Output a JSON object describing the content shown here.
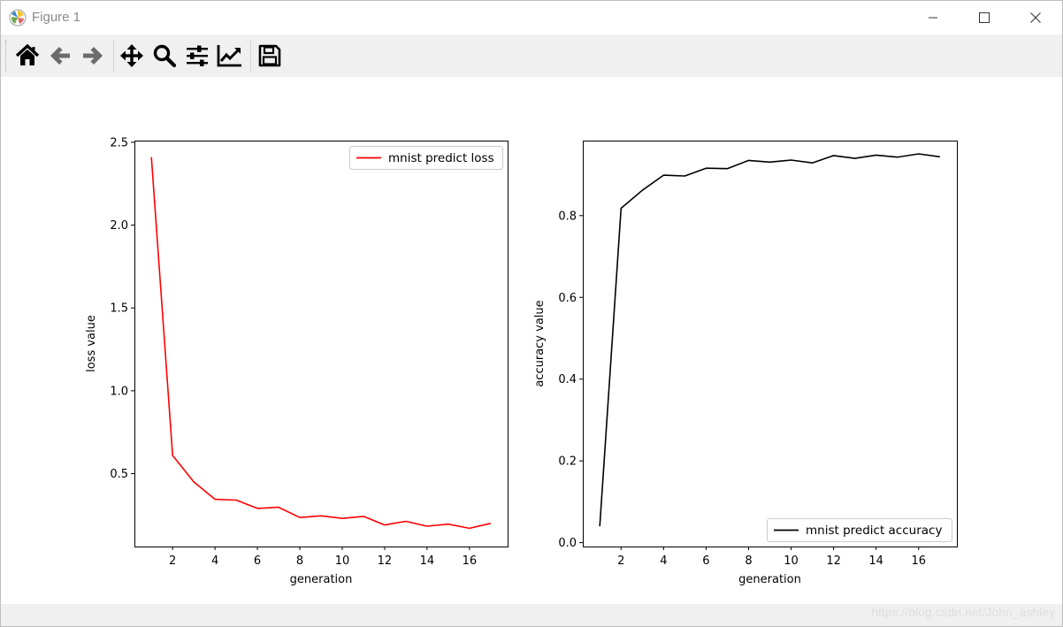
{
  "window": {
    "title": "Figure 1",
    "controls": [
      "minimize",
      "maximize",
      "close"
    ]
  },
  "toolbar": {
    "tools": [
      {
        "name": "home",
        "icon": "home-icon"
      },
      {
        "name": "back",
        "icon": "arrow-left-icon"
      },
      {
        "name": "forward",
        "icon": "arrow-right-icon"
      },
      {
        "name": "pan",
        "icon": "move-icon"
      },
      {
        "name": "zoom",
        "icon": "magnifier-icon"
      },
      {
        "name": "subplots",
        "icon": "sliders-icon"
      },
      {
        "name": "edit-axis",
        "icon": "line-chart-icon"
      },
      {
        "name": "save",
        "icon": "floppy-disk-icon"
      }
    ]
  },
  "statusbar": {
    "watermark": "https://blog.csdn.net/John_ashley"
  },
  "chart_data": [
    {
      "type": "line",
      "title": "",
      "xlabel": "generation",
      "ylabel": "loss value",
      "xlim": [
        0.2,
        17.8
      ],
      "ylim": [
        0.06,
        2.51
      ],
      "xticks": [
        2,
        4,
        6,
        8,
        10,
        12,
        14,
        16
      ],
      "yticks": [
        0.5,
        1.0,
        1.5,
        2.0,
        2.5
      ],
      "ytick_labels": [
        "0.5",
        "1.0",
        "1.5",
        "2.0",
        "2.5"
      ],
      "grid": false,
      "legend_position": "upper right",
      "series": [
        {
          "name": "mnist predict loss",
          "color": "#ff0000",
          "x": [
            1,
            2,
            3,
            4,
            5,
            6,
            7,
            8,
            9,
            10,
            11,
            12,
            13,
            14,
            15,
            16,
            17
          ],
          "y": [
            2.41,
            0.61,
            0.45,
            0.345,
            0.34,
            0.29,
            0.297,
            0.235,
            0.245,
            0.23,
            0.242,
            0.19,
            0.212,
            0.183,
            0.195,
            0.17,
            0.2
          ]
        }
      ]
    },
    {
      "type": "line",
      "title": "",
      "xlabel": "generation",
      "ylabel": "accuracy value",
      "xlim": [
        0.2,
        17.8
      ],
      "ylim": [
        -0.0095,
        0.9835
      ],
      "xticks": [
        2,
        4,
        6,
        8,
        10,
        12,
        14,
        16
      ],
      "yticks": [
        0.0,
        0.2,
        0.4,
        0.6,
        0.8
      ],
      "ytick_labels": [
        "0.0",
        "0.2",
        "0.4",
        "0.6",
        "0.8"
      ],
      "grid": false,
      "legend_position": "lower right",
      "series": [
        {
          "name": "mnist predict accuracy",
          "color": "#000000",
          "x": [
            1,
            2,
            3,
            4,
            5,
            6,
            7,
            8,
            9,
            10,
            11,
            12,
            13,
            14,
            15,
            16,
            17
          ],
          "y": [
            0.04,
            0.818,
            0.862,
            0.899,
            0.897,
            0.916,
            0.915,
            0.935,
            0.931,
            0.936,
            0.929,
            0.947,
            0.94,
            0.948,
            0.943,
            0.951,
            0.944
          ]
        }
      ]
    }
  ]
}
